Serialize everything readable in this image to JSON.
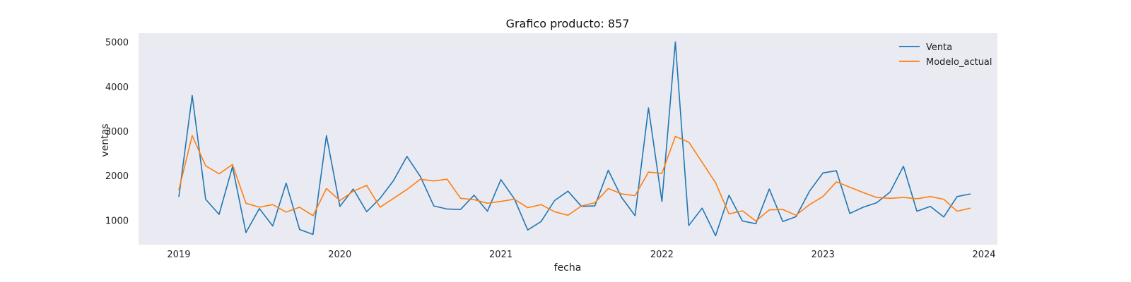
{
  "chart_data": {
    "type": "line",
    "title": "Grafico producto: 857",
    "xlabel": "fecha",
    "ylabel": "ventas",
    "x_start": "2019-01",
    "x_frequency": "monthly",
    "xlim": [
      "2018-10",
      "2024-02"
    ],
    "ylim": [
      450,
      5200
    ],
    "x_ticks": [
      "2019",
      "2020",
      "2021",
      "2022",
      "2023",
      "2024"
    ],
    "y_ticks": [
      1000,
      2000,
      3000,
      4000,
      5000
    ],
    "grid": false,
    "background": "#eaeaf2",
    "legend_position": "top-right",
    "series": [
      {
        "name": "Venta",
        "color": "#1f77b4",
        "values": [
          1520,
          3800,
          1470,
          1130,
          2200,
          720,
          1260,
          870,
          1830,
          790,
          680,
          2900,
          1310,
          1700,
          1190,
          1490,
          1890,
          2430,
          1980,
          1320,
          1250,
          1240,
          1560,
          1200,
          1910,
          1480,
          780,
          970,
          1440,
          1650,
          1310,
          1320,
          2120,
          1510,
          1100,
          3520,
          1420,
          5000,
          880,
          1270,
          650,
          1560,
          980,
          920,
          1700,
          970,
          1080,
          1650,
          2060,
          2110,
          1150,
          1290,
          1390,
          1630,
          2210,
          1200,
          1310,
          1070,
          1530,
          1590
        ]
      },
      {
        "name": "Modelo_actual",
        "color": "#ff7f0e",
        "values": [
          1680,
          2900,
          2220,
          2040,
          2250,
          1380,
          1290,
          1350,
          1180,
          1290,
          1100,
          1710,
          1440,
          1650,
          1780,
          1290,
          1490,
          1690,
          1920,
          1880,
          1920,
          1490,
          1460,
          1380,
          1420,
          1470,
          1280,
          1350,
          1190,
          1110,
          1320,
          1390,
          1710,
          1590,
          1550,
          2080,
          2050,
          2880,
          2750,
          2300,
          1840,
          1140,
          1210,
          980,
          1230,
          1240,
          1110,
          1350,
          1530,
          1860,
          1740,
          1620,
          1510,
          1490,
          1510,
          1480,
          1530,
          1470,
          1200,
          1270
        ]
      }
    ]
  }
}
